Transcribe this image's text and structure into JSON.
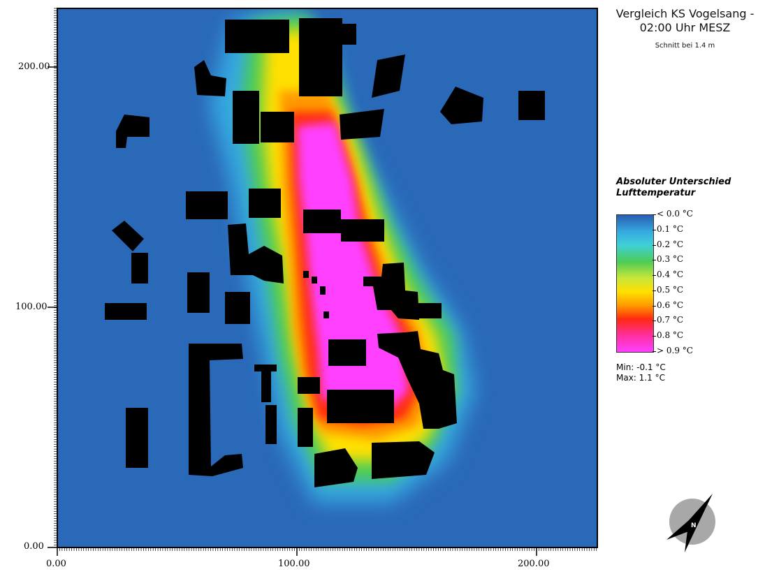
{
  "header": {
    "title_line1": "Vergleich KS Vogelsang -",
    "title_line2": "02:00 Uhr MESZ",
    "subtitle": "Schnitt bei 1.4 m"
  },
  "legend": {
    "title_line1": "Absoluter Unterschied",
    "title_line2": "Lufttemperatur",
    "entries": [
      "< 0.0 °C",
      "0.1  °C",
      "0.2  °C",
      "0.3  °C",
      "0.4  °C",
      "0.5  °C",
      "0.6  °C",
      "0.7  °C",
      "0.8  °C",
      "> 0.9 °C"
    ],
    "min_label": "Min: -0.1 °C",
    "max_label": "Max: 1.1 °C"
  },
  "axes": {
    "x_ticks": [
      "0.00",
      "100.00",
      "200.00"
    ],
    "y_ticks": [
      "0.00",
      "100.00",
      "200.00"
    ]
  },
  "compass": {
    "label": "N"
  },
  "colors": {
    "background": "#2a68b8",
    "building": "#000000",
    "hot": "#ff40ff",
    "warm": "#ff2a10",
    "mid": "#ffe000",
    "cool": "#4ccc55",
    "cold": "#35a9e0"
  }
}
